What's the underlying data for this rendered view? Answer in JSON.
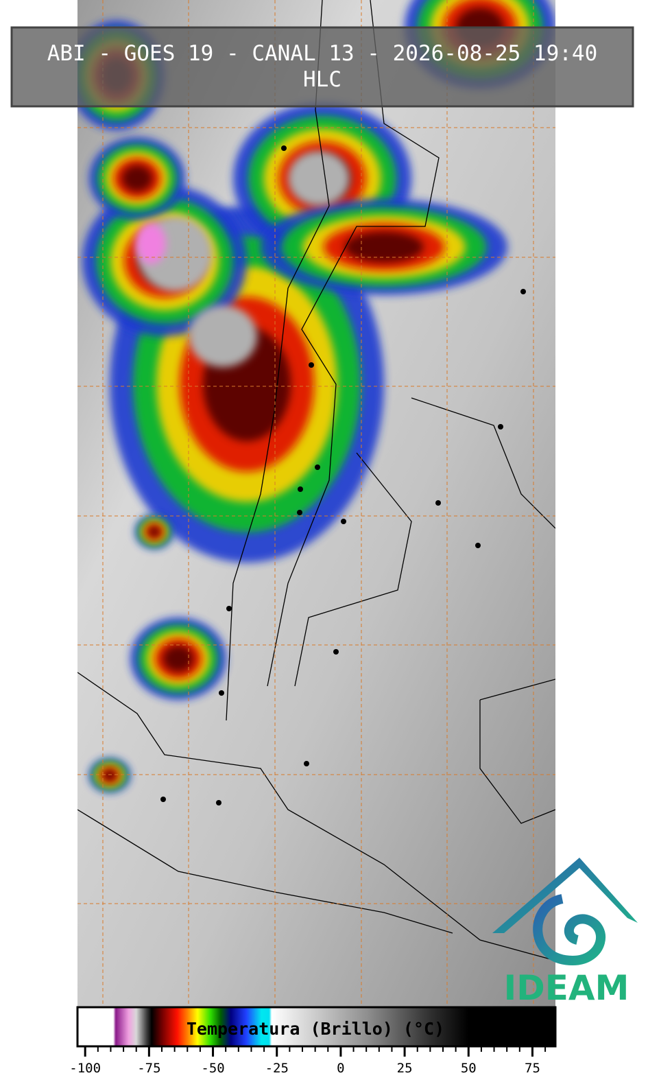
{
  "header": {
    "title_line1": "ABI - GOES 19 - CANAL 13 - 2026-08-25 19:40",
    "title_line2": "HLC"
  },
  "colorbar": {
    "label": "Temperatura (Brillo) (°C)",
    "range": [
      -103,
      84
    ],
    "ticks": [
      -100,
      -75,
      -50,
      -25,
      0,
      25,
      50,
      75
    ],
    "minor_ticks": [
      -95,
      -90,
      -85,
      -80,
      -70,
      -65,
      -60,
      -55,
      -45,
      -40,
      -35,
      -30,
      -20,
      -15,
      -10,
      -5,
      5,
      10,
      15,
      20,
      30,
      35,
      40,
      45,
      55,
      60,
      65,
      70,
      80
    ],
    "stops": [
      {
        "value": -103,
        "color": "#ffffff"
      },
      {
        "value": -89,
        "color": "#ffffff"
      },
      {
        "value": -88,
        "color": "#8a1a8a"
      },
      {
        "value": -83,
        "color": "#f0a0e0"
      },
      {
        "value": -80,
        "color": "#d8d8d8"
      },
      {
        "value": -76,
        "color": "#404040"
      },
      {
        "value": -74,
        "color": "#000000"
      },
      {
        "value": -70,
        "color": "#700000"
      },
      {
        "value": -64,
        "color": "#ff1000"
      },
      {
        "value": -60,
        "color": "#ff8000"
      },
      {
        "value": -56,
        "color": "#ffff00"
      },
      {
        "value": -51,
        "color": "#30e000"
      },
      {
        "value": -47,
        "color": "#006000"
      },
      {
        "value": -43,
        "color": "#000080"
      },
      {
        "value": -37,
        "color": "#2040ff"
      },
      {
        "value": -31,
        "color": "#00e8f0"
      },
      {
        "value": -28,
        "color": "#00e0f0"
      },
      {
        "value": -27,
        "color": "#ffffff"
      },
      {
        "value": 10,
        "color": "#909090"
      },
      {
        "value": 35,
        "color": "#303030"
      },
      {
        "value": 50,
        "color": "#000000"
      },
      {
        "value": 84,
        "color": "#000000"
      }
    ]
  },
  "logo": {
    "text": "IDEAM"
  }
}
